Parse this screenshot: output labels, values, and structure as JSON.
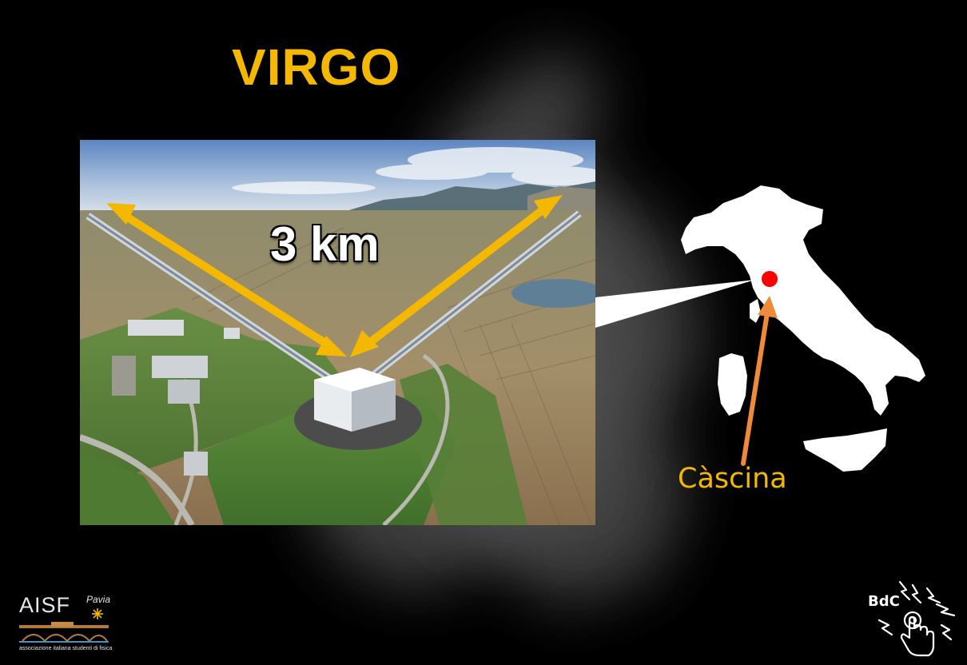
{
  "slide": {
    "title": "VIRGO",
    "distance_label": "3 km",
    "city_label": "Càscina"
  },
  "photo": {
    "subject": "virgo-aerial-photo"
  },
  "map": {
    "country": "italy-map",
    "marker_color": "#ff0000"
  },
  "logos": {
    "left": {
      "name": "AISF",
      "city": "Pavia",
      "subtitle": "associazione italiana studenti di fisica"
    },
    "right": {
      "name": "BdC"
    }
  },
  "colors": {
    "accent": "#f5b800",
    "arrow_yellow": "#f5b800",
    "arrow_orange": "#f08a3a",
    "background": "#000000"
  }
}
